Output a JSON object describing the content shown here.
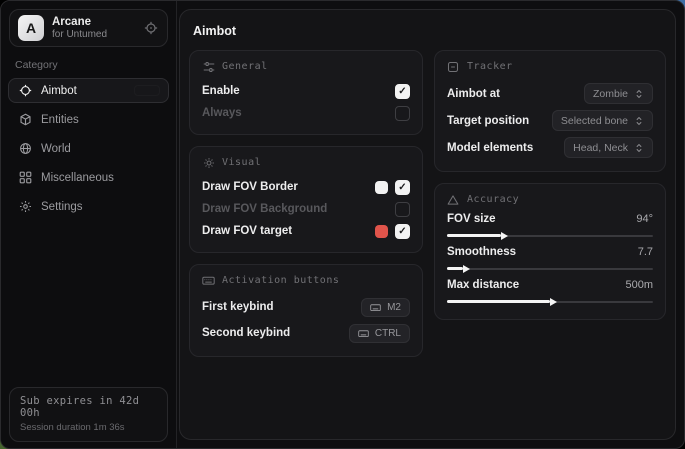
{
  "app": {
    "name": "Arcane",
    "subtitle": "for Untumed",
    "logo_letter": "A"
  },
  "sidebar": {
    "category_label": "Category",
    "items": [
      {
        "label": "Aimbot",
        "icon": "crosshair-icon",
        "active": true
      },
      {
        "label": "Entities",
        "icon": "box-icon",
        "active": false
      },
      {
        "label": "World",
        "icon": "globe-icon",
        "active": false
      },
      {
        "label": "Miscellaneous",
        "icon": "grid-icon",
        "active": false
      },
      {
        "label": "Settings",
        "icon": "gear-icon",
        "active": false
      }
    ],
    "status": {
      "line1": "Sub expires in 42d 00h",
      "line2": "Session duration 1m 36s"
    }
  },
  "main": {
    "title": "Aimbot",
    "general": {
      "title": "General",
      "rows": [
        {
          "label": "Enable",
          "checked": true,
          "dimmed": false
        },
        {
          "label": "Always",
          "checked": false,
          "dimmed": true
        }
      ]
    },
    "visual": {
      "title": "Visual",
      "rows": [
        {
          "label": "Draw FOV Border",
          "swatch": "#f2f2f2",
          "checked": true,
          "dimmed": false
        },
        {
          "label": "Draw FOV Background",
          "checked": false,
          "dimmed": true
        },
        {
          "label": "Draw FOV target",
          "swatch": "#e0544b",
          "checked": true,
          "dimmed": false
        }
      ]
    },
    "activation": {
      "title": "Activation buttons",
      "rows": [
        {
          "label": "First keybind",
          "key": "M2"
        },
        {
          "label": "Second keybind",
          "key": "CTRL"
        }
      ]
    },
    "tracker": {
      "title": "Tracker",
      "rows": [
        {
          "label": "Aimbot at",
          "value": "Zombie"
        },
        {
          "label": "Target position",
          "value": "Selected bone"
        },
        {
          "label": "Model elements",
          "value": "Head, Neck"
        }
      ]
    },
    "accuracy": {
      "title": "Accuracy",
      "sliders": [
        {
          "label": "FOV size",
          "value": "94°",
          "percent": 26
        },
        {
          "label": "Smoothness",
          "value": "7.7",
          "percent": 8
        },
        {
          "label": "Max distance",
          "value": "500m",
          "percent": 50
        }
      ]
    }
  },
  "colors": {
    "accent_red": "#e0544b",
    "swatch_white": "#f2f2f2",
    "checkbox_checked_bg": "#f2f2f2"
  }
}
